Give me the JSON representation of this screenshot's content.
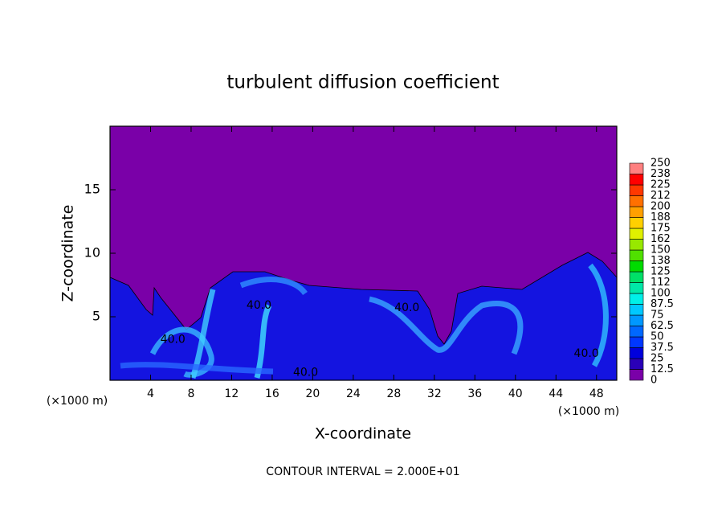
{
  "chart_data": {
    "type": "contour",
    "title": "turbulent diffusion coefficient",
    "xlabel": "X-coordinate",
    "ylabel": "Z-coordinate",
    "x_unit": "(×1000 m)",
    "footer": "CONTOUR INTERVAL = 2.000E+01",
    "xlim": [
      0,
      50
    ],
    "xticks": [
      4,
      8,
      12,
      16,
      20,
      24,
      28,
      32,
      36,
      40,
      44,
      48
    ],
    "ylim": [
      0,
      20
    ],
    "yticks": [
      5,
      10,
      15
    ],
    "background_color": "#7a00a8",
    "field_color": "#1414e0",
    "contour_labels": [
      {
        "value": 40,
        "label": "40.0",
        "x": 6.2,
        "z": 3.2
      },
      {
        "value": 40,
        "label": "40.0",
        "x": 14.7,
        "z": 5.9
      },
      {
        "value": 40,
        "label": "40.0",
        "x": 29.3,
        "z": 5.7
      },
      {
        "value": 40,
        "label": "40.0",
        "x": 47,
        "z": 2.1
      },
      {
        "value": 40,
        "label": "40.0",
        "x": 19.3,
        "z": 0.6
      }
    ],
    "colorbar": {
      "ticks": [
        0,
        12.5,
        25,
        37.5,
        50,
        62.5,
        75,
        87.5,
        100,
        {
          "value": 112.5,
          "label": "112"
        },
        125,
        {
          "value": 137.5,
          "label": "138"
        },
        150,
        {
          "value": 162.5,
          "label": "162"
        },
        175,
        {
          "value": 187.5,
          "label": "188"
        },
        200,
        {
          "value": 212.5,
          "label": "212"
        },
        225,
        {
          "value": 237.5,
          "label": "238"
        },
        250
      ],
      "colors": [
        "#7a00a8",
        "#2a00b8",
        "#0000dc",
        "#0038ff",
        "#0068ff",
        "#0098ff",
        "#00c8ff",
        "#00f0e8",
        "#00e8a8",
        "#00e068",
        "#00dc00",
        "#50e000",
        "#98e800",
        "#e0f000",
        "#ffd000",
        "#ffa000",
        "#ff7000",
        "#ff3800",
        "#ff0000",
        "#ff8080"
      ]
    }
  }
}
